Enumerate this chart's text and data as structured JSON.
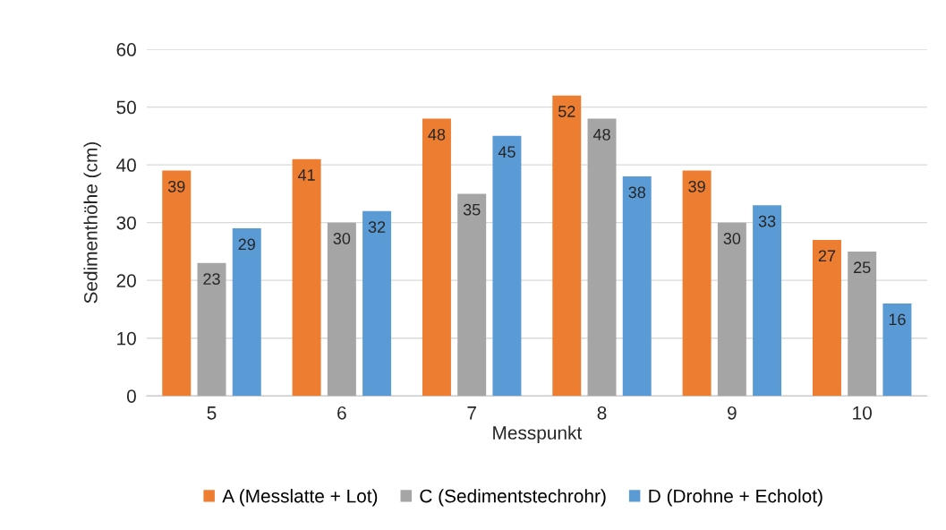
{
  "chart_data": {
    "type": "bar",
    "xlabel": "Messpunkt",
    "ylabel": "Sedimenthöhe (cm)",
    "categories": [
      "5",
      "6",
      "7",
      "8",
      "9",
      "10"
    ],
    "series": [
      {
        "name": "A (Messlatte + Lot)",
        "color": "#ed7d31",
        "values": [
          39,
          41,
          48,
          52,
          39,
          27
        ]
      },
      {
        "name": "C (Sedimentstechrohr)",
        "color": "#a5a5a5",
        "values": [
          23,
          30,
          35,
          48,
          30,
          25
        ]
      },
      {
        "name": "D (Drohne + Echolot)",
        "color": "#5b9bd5",
        "values": [
          29,
          32,
          45,
          38,
          33,
          16
        ]
      }
    ],
    "ylim": [
      0,
      60
    ],
    "yticks": [
      0,
      10,
      20,
      30,
      40,
      50,
      60
    ],
    "grid": "y",
    "legend": "bottom",
    "data_labels": true
  }
}
